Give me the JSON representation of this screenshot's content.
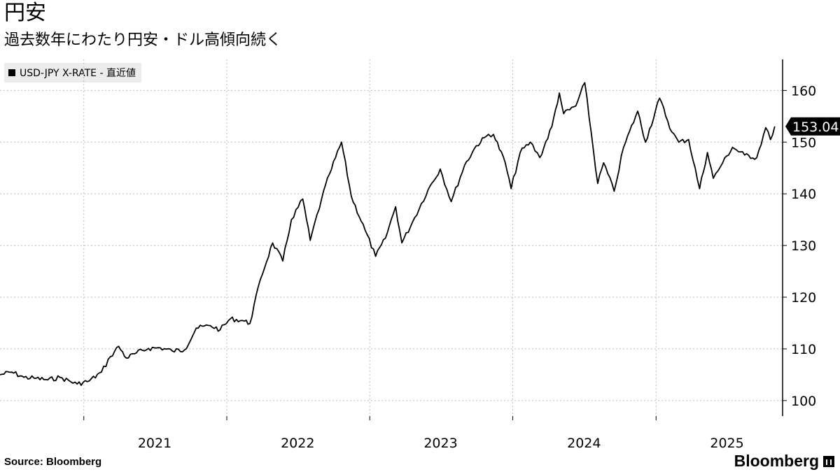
{
  "header": {
    "title": "円安",
    "subtitle": "過去数年にわたり円安・ドル高傾向続く"
  },
  "legend": {
    "label": "USD-JPY X-RATE - 直近値"
  },
  "footer": {
    "source": "Source:  Bloomberg",
    "brand": "Bloomberg"
  },
  "chart_data": {
    "type": "line",
    "title": "円安",
    "subtitle": "過去数年にわたり円安・ドル高傾向続く",
    "xlabel": "",
    "ylabel": "",
    "ylim": [
      97,
      166
    ],
    "y_ticks": [
      100,
      110,
      120,
      130,
      140,
      150,
      160
    ],
    "x_ticks": [
      "2021",
      "2022",
      "2023",
      "2024",
      "2025"
    ],
    "y_axis_side": "right",
    "grid": true,
    "legend_position": "top-left",
    "last_value_label": "153.04",
    "series": [
      {
        "name": "USD-JPY X-RATE - 直近値",
        "color": "#000000",
        "points": [
          [
            "2020-06-01",
            105.0
          ],
          [
            "2020-07-01",
            105.5
          ],
          [
            "2020-08-01",
            104.5
          ],
          [
            "2020-09-01",
            104.3
          ],
          [
            "2020-10-01",
            104.0
          ],
          [
            "2020-11-01",
            104.5
          ],
          [
            "2020-12-15",
            103.2
          ],
          [
            "2021-01-15",
            103.8
          ],
          [
            "2021-02-15",
            105.5
          ],
          [
            "2021-03-10",
            108.5
          ],
          [
            "2021-03-31",
            110.5
          ],
          [
            "2021-04-20",
            108.2
          ],
          [
            "2021-05-15",
            109.2
          ],
          [
            "2021-06-15",
            110.1
          ],
          [
            "2021-07-15",
            110.2
          ],
          [
            "2021-08-15",
            109.6
          ],
          [
            "2021-09-15",
            109.8
          ],
          [
            "2021-10-15",
            114.0
          ],
          [
            "2021-11-20",
            114.5
          ],
          [
            "2021-12-15",
            113.7
          ],
          [
            "2022-01-10",
            115.8
          ],
          [
            "2022-02-10",
            115.5
          ],
          [
            "2022-03-01",
            114.9
          ],
          [
            "2022-03-28",
            123.5
          ],
          [
            "2022-04-28",
            130.5
          ],
          [
            "2022-05-24",
            127.0
          ],
          [
            "2022-06-15",
            135.0
          ],
          [
            "2022-07-14",
            139.0
          ],
          [
            "2022-08-02",
            131.0
          ],
          [
            "2022-08-31",
            139.0
          ],
          [
            "2022-09-20",
            143.8
          ],
          [
            "2022-10-21",
            150.0
          ],
          [
            "2022-11-15",
            139.5
          ],
          [
            "2022-12-20",
            133.0
          ],
          [
            "2023-01-16",
            127.9
          ],
          [
            "2023-02-10",
            131.4
          ],
          [
            "2023-03-08",
            137.5
          ],
          [
            "2023-03-24",
            130.5
          ],
          [
            "2023-04-20",
            134.5
          ],
          [
            "2023-05-30",
            140.8
          ],
          [
            "2023-06-30",
            144.8
          ],
          [
            "2023-07-28",
            138.5
          ],
          [
            "2023-08-31",
            145.5
          ],
          [
            "2023-09-30",
            149.3
          ],
          [
            "2023-10-31",
            151.5
          ],
          [
            "2023-11-13",
            151.5
          ],
          [
            "2023-12-13",
            146.0
          ],
          [
            "2023-12-28",
            141.0
          ],
          [
            "2024-01-20",
            148.0
          ],
          [
            "2024-02-15",
            150.0
          ],
          [
            "2024-03-10",
            147.0
          ],
          [
            "2024-04-10",
            153.0
          ],
          [
            "2024-04-29",
            159.5
          ],
          [
            "2024-05-10",
            155.5
          ],
          [
            "2024-06-10",
            157.0
          ],
          [
            "2024-07-03",
            161.5
          ],
          [
            "2024-08-05",
            142.0
          ],
          [
            "2024-08-20",
            146.0
          ],
          [
            "2024-09-16",
            140.5
          ],
          [
            "2024-10-10",
            149.0
          ],
          [
            "2024-11-15",
            156.0
          ],
          [
            "2024-12-05",
            150.0
          ],
          [
            "2025-01-10",
            158.5
          ],
          [
            "2025-02-10",
            152.0
          ],
          [
            "2025-02-28",
            150.0
          ],
          [
            "2025-03-25",
            150.5
          ],
          [
            "2025-04-22",
            141.0
          ],
          [
            "2025-05-12",
            148.0
          ],
          [
            "2025-05-27",
            143.0
          ],
          [
            "2025-06-20",
            146.0
          ],
          [
            "2025-07-15",
            149.0
          ],
          [
            "2025-08-15",
            147.5
          ],
          [
            "2025-09-15",
            147.0
          ],
          [
            "2025-10-08",
            152.8
          ],
          [
            "2025-10-20",
            150.5
          ],
          [
            "2025-10-31",
            153.04
          ]
        ]
      }
    ]
  }
}
